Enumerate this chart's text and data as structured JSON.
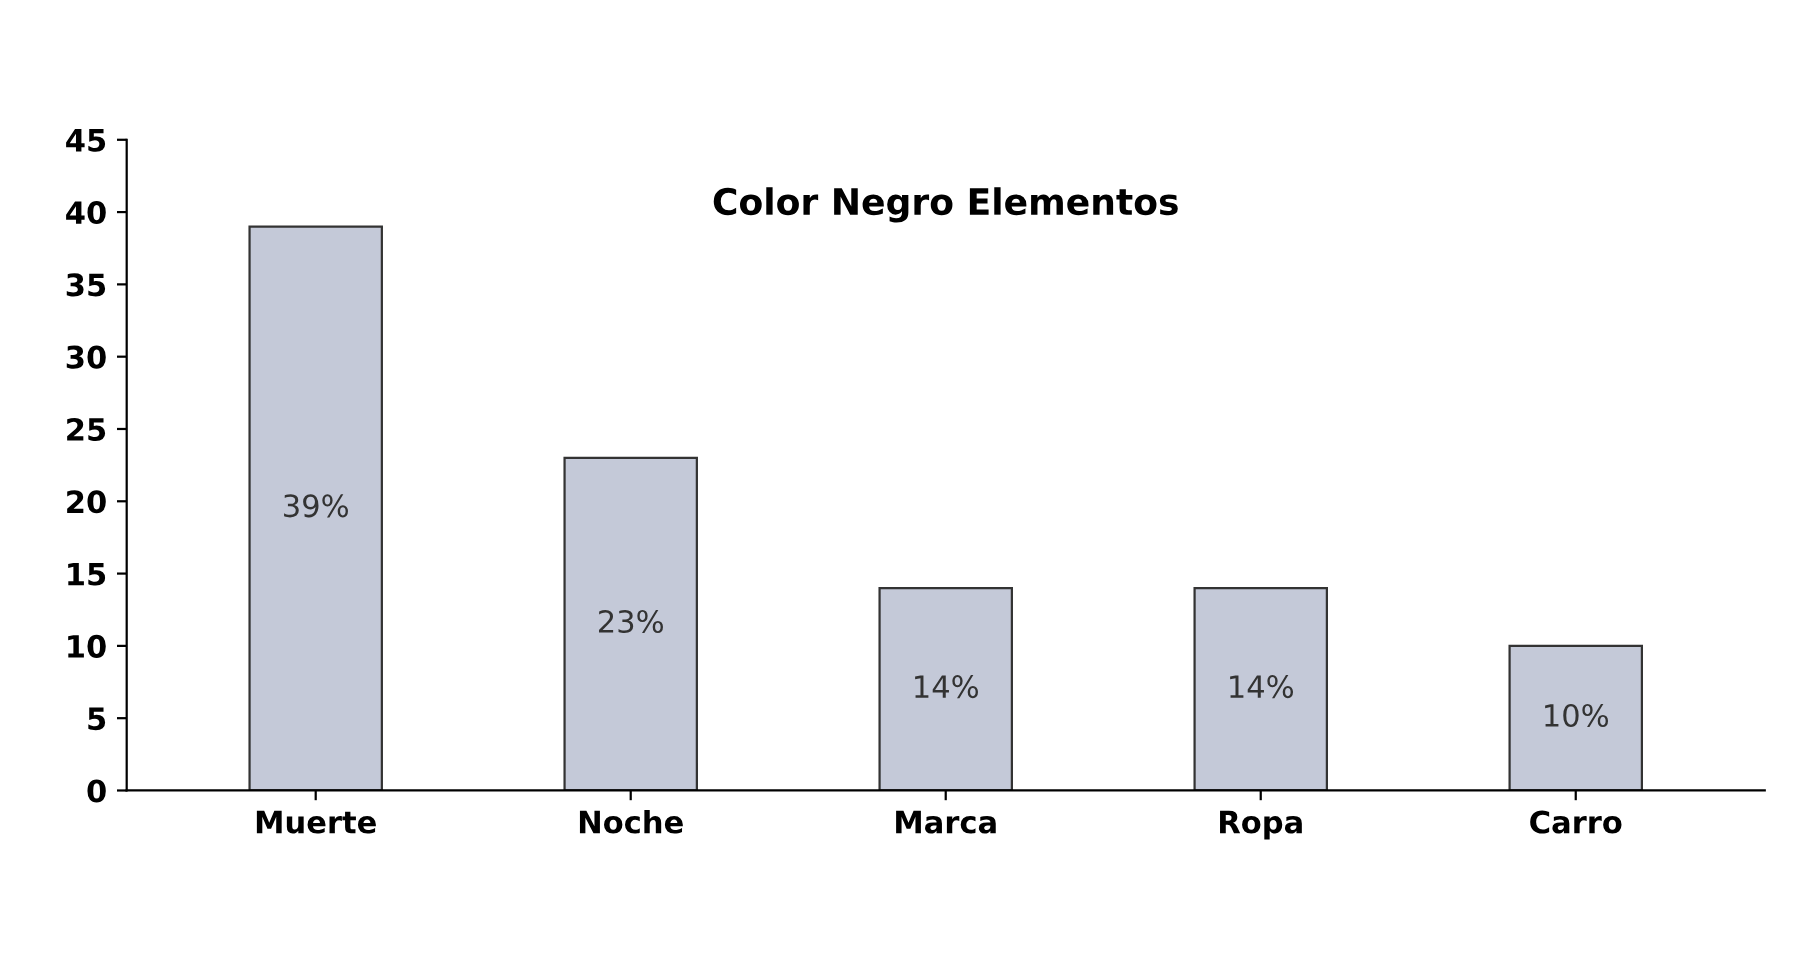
{
  "chart_data": {
    "type": "bar",
    "title": "Color Negro Elementos",
    "categories": [
      "Muerte",
      "Noche",
      "Marca",
      "Ropa",
      "Carro"
    ],
    "values": [
      39,
      23,
      14,
      14,
      10
    ],
    "value_labels": [
      "39%",
      "23%",
      "14%",
      "14%",
      "10%"
    ],
    "color": "#c4c9d8",
    "ylim": [
      0,
      45
    ],
    "yticks": [
      0,
      5,
      10,
      15,
      20,
      25,
      30,
      35,
      40,
      45
    ],
    "grid": false,
    "legend": false
  }
}
